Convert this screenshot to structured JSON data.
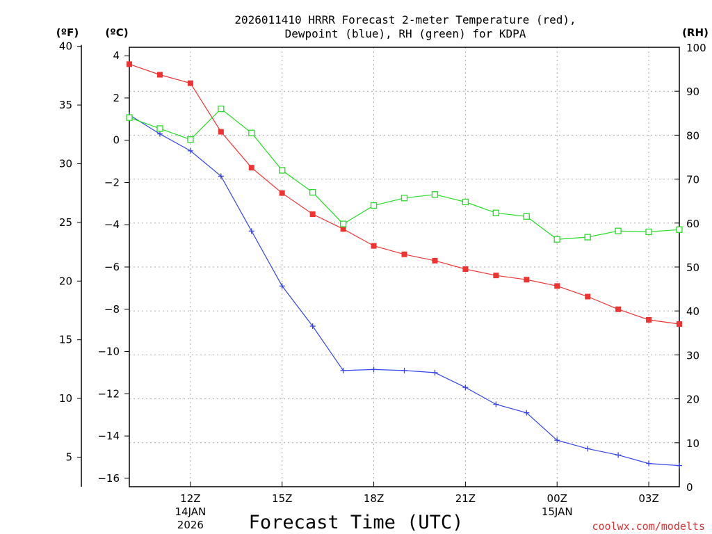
{
  "chart_data": {
    "type": "line",
    "title_line1": "2026011410 HRRR Forecast 2-meter Temperature (red),",
    "title_line2": "Dewpoint (blue), RH (green) for KDPA",
    "xlabel": "Forecast Time (UTC)",
    "left_unit_f": "(ºF)",
    "left_unit_c": "(ºC)",
    "right_unit": "(RH)",
    "x_hours": [
      10,
      11,
      12,
      13,
      14,
      15,
      16,
      17,
      18,
      19,
      20,
      21,
      22,
      23,
      24,
      25,
      26,
      27,
      28
    ],
    "xlim": [
      10,
      28
    ],
    "x_ticks": [
      {
        "hour": 12,
        "label": "12Z",
        "sub1": "14JAN",
        "sub2": "2026"
      },
      {
        "hour": 15,
        "label": "15Z",
        "sub1": "",
        "sub2": ""
      },
      {
        "hour": 18,
        "label": "18Z",
        "sub1": "",
        "sub2": ""
      },
      {
        "hour": 21,
        "label": "21Z",
        "sub1": "",
        "sub2": ""
      },
      {
        "hour": 24,
        "label": "00Z",
        "sub1": "15JAN",
        "sub2": ""
      },
      {
        "hour": 27,
        "label": "03Z",
        "sub1": "",
        "sub2": ""
      }
    ],
    "c_axis": {
      "ylim": [
        -16.4,
        4.4
      ],
      "ticks": [
        "4",
        "2",
        "0",
        "−2",
        "−4",
        "−6",
        "−8",
        "−10",
        "−12",
        "−14",
        "−16"
      ],
      "tick_values": [
        4,
        2,
        0,
        -2,
        -4,
        -6,
        -8,
        -10,
        -12,
        -14,
        -16
      ]
    },
    "f_axis": {
      "ticks": [
        "40",
        "35",
        "30",
        "25",
        "20",
        "15",
        "10",
        "5"
      ],
      "tick_values": [
        40,
        35,
        30,
        25,
        20,
        15,
        10,
        5
      ]
    },
    "rh_axis": {
      "ylim": [
        0,
        100
      ],
      "ticks": [
        "100",
        "90",
        "80",
        "70",
        "60",
        "50",
        "40",
        "30",
        "20",
        "10",
        "0"
      ],
      "tick_values": [
        100,
        90,
        80,
        70,
        60,
        50,
        40,
        30,
        20,
        10,
        0
      ]
    },
    "series": [
      {
        "name": "Temperature",
        "unit": "C",
        "color": "#ee3333",
        "marker": "filled-square",
        "values": [
          3.6,
          3.1,
          2.7,
          0.4,
          -1.3,
          -2.5,
          -3.5,
          -4.2,
          -5.0,
          -5.4,
          -5.7,
          -6.1,
          -6.4,
          -6.6,
          -6.9,
          -7.4,
          -8.0,
          -8.5,
          -8.7
        ]
      },
      {
        "name": "Dewpoint",
        "unit": "C",
        "color": "#3344ee",
        "marker": "plus",
        "values": [
          1.2,
          0.3,
          -0.5,
          -1.7,
          -4.3,
          -6.9,
          -8.8,
          -10.9,
          -10.85,
          -10.9,
          -11.0,
          -11.7,
          -12.5,
          -12.9,
          -14.2,
          -14.6,
          -14.9,
          -15.3,
          -15.4
        ]
      },
      {
        "name": "RH",
        "unit": "%",
        "color": "#22dd22",
        "marker": "open-square",
        "values": [
          84,
          81.5,
          79,
          86,
          80.5,
          72,
          67,
          59.8,
          64,
          65.7,
          66.5,
          64.8,
          62.3,
          61.5,
          56.3,
          56.8,
          58.2,
          58,
          58.5
        ]
      }
    ]
  },
  "footer": {
    "credit": "coolwx.com/modelts"
  }
}
